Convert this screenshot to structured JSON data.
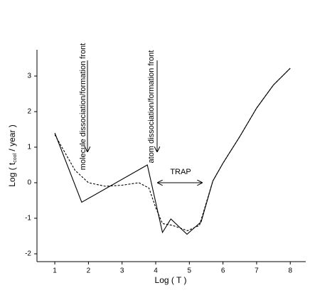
{
  "chart_data": {
    "type": "line",
    "xlabel": "Log ( T )",
    "ylabel": [
      "Log ( t",
      "cool",
      " / year )"
    ],
    "annotations": [
      "molecule dissociation/formation front",
      "atom dissociation/formation front",
      "TRAP"
    ],
    "xlim": [
      0.47,
      8.46
    ],
    "ylim": [
      -2.22,
      3.74
    ],
    "xticks": [
      1,
      2,
      3,
      4,
      5,
      6,
      7,
      8
    ],
    "yticks": [
      -2,
      -1,
      0,
      1,
      2,
      3
    ],
    "series": [
      {
        "color": "#000000",
        "dashed": false,
        "x": [
          1,
          1.8,
          3.75,
          4.2,
          4.45,
          4.93,
          5.35,
          5.7,
          6,
          6.5,
          7,
          7.5,
          8
        ],
        "values": [
          1.4,
          -0.55,
          0.5,
          -1.4,
          -1.02,
          -1.45,
          -1.1,
          0.05,
          0.55,
          1.3,
          2.1,
          2.75,
          3.22
        ]
      },
      {
        "color": "#000000",
        "dashed": true,
        "x": [
          1,
          1.3,
          1.6,
          2,
          2.5,
          3,
          3.5,
          3.8,
          4,
          4.2,
          4.5,
          4.95,
          5.3,
          5.7,
          6,
          6.5,
          7,
          7.5,
          8
        ],
        "values": [
          1.35,
          0.85,
          0.35,
          0,
          -0.1,
          -0.07,
          0,
          -0.15,
          -0.7,
          -1.15,
          -1.2,
          -1.35,
          -1.2,
          0.05,
          0.55,
          1.3,
          2.1,
          2.75,
          3.22
        ]
      }
    ]
  }
}
